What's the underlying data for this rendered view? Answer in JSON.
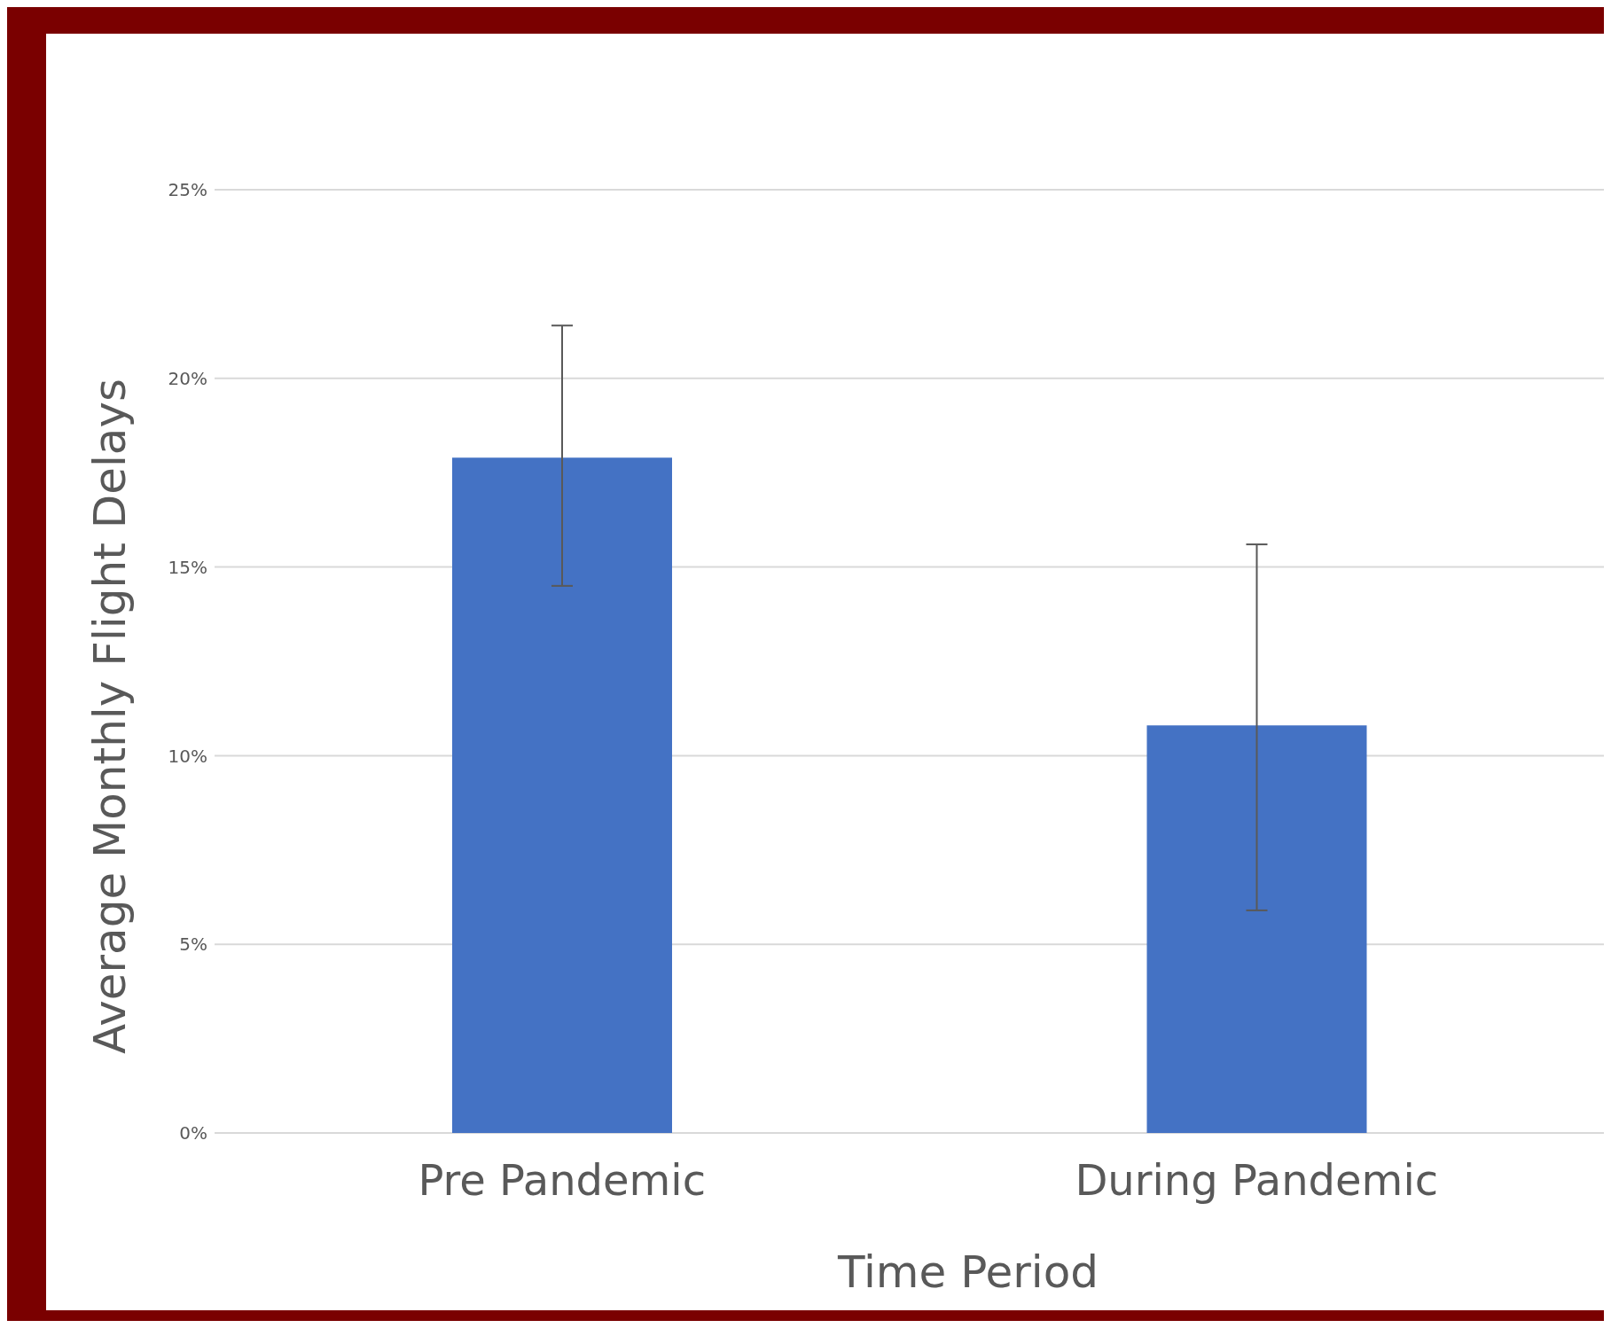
{
  "chart_data": {
    "type": "bar",
    "xlabel": "Time Period",
    "ylabel": "Average Monthly Flight Delays",
    "categories": [
      "Pre Pandemic",
      "During Pandemic"
    ],
    "values": [
      17.9,
      10.8
    ],
    "errors": [
      [
        14.5,
        21.4
      ],
      [
        5.9,
        15.6
      ]
    ],
    "color": "#4472c4",
    "ylim": [
      0,
      25
    ],
    "yticks": [
      {
        "value": 0,
        "label": "0%"
      },
      {
        "value": 5,
        "label": "5%"
      },
      {
        "value": 10,
        "label": "10%"
      },
      {
        "value": 15,
        "label": "15%"
      },
      {
        "value": 20,
        "label": "20%"
      },
      {
        "value": 25,
        "label": "25%"
      }
    ],
    "grid": "y"
  }
}
